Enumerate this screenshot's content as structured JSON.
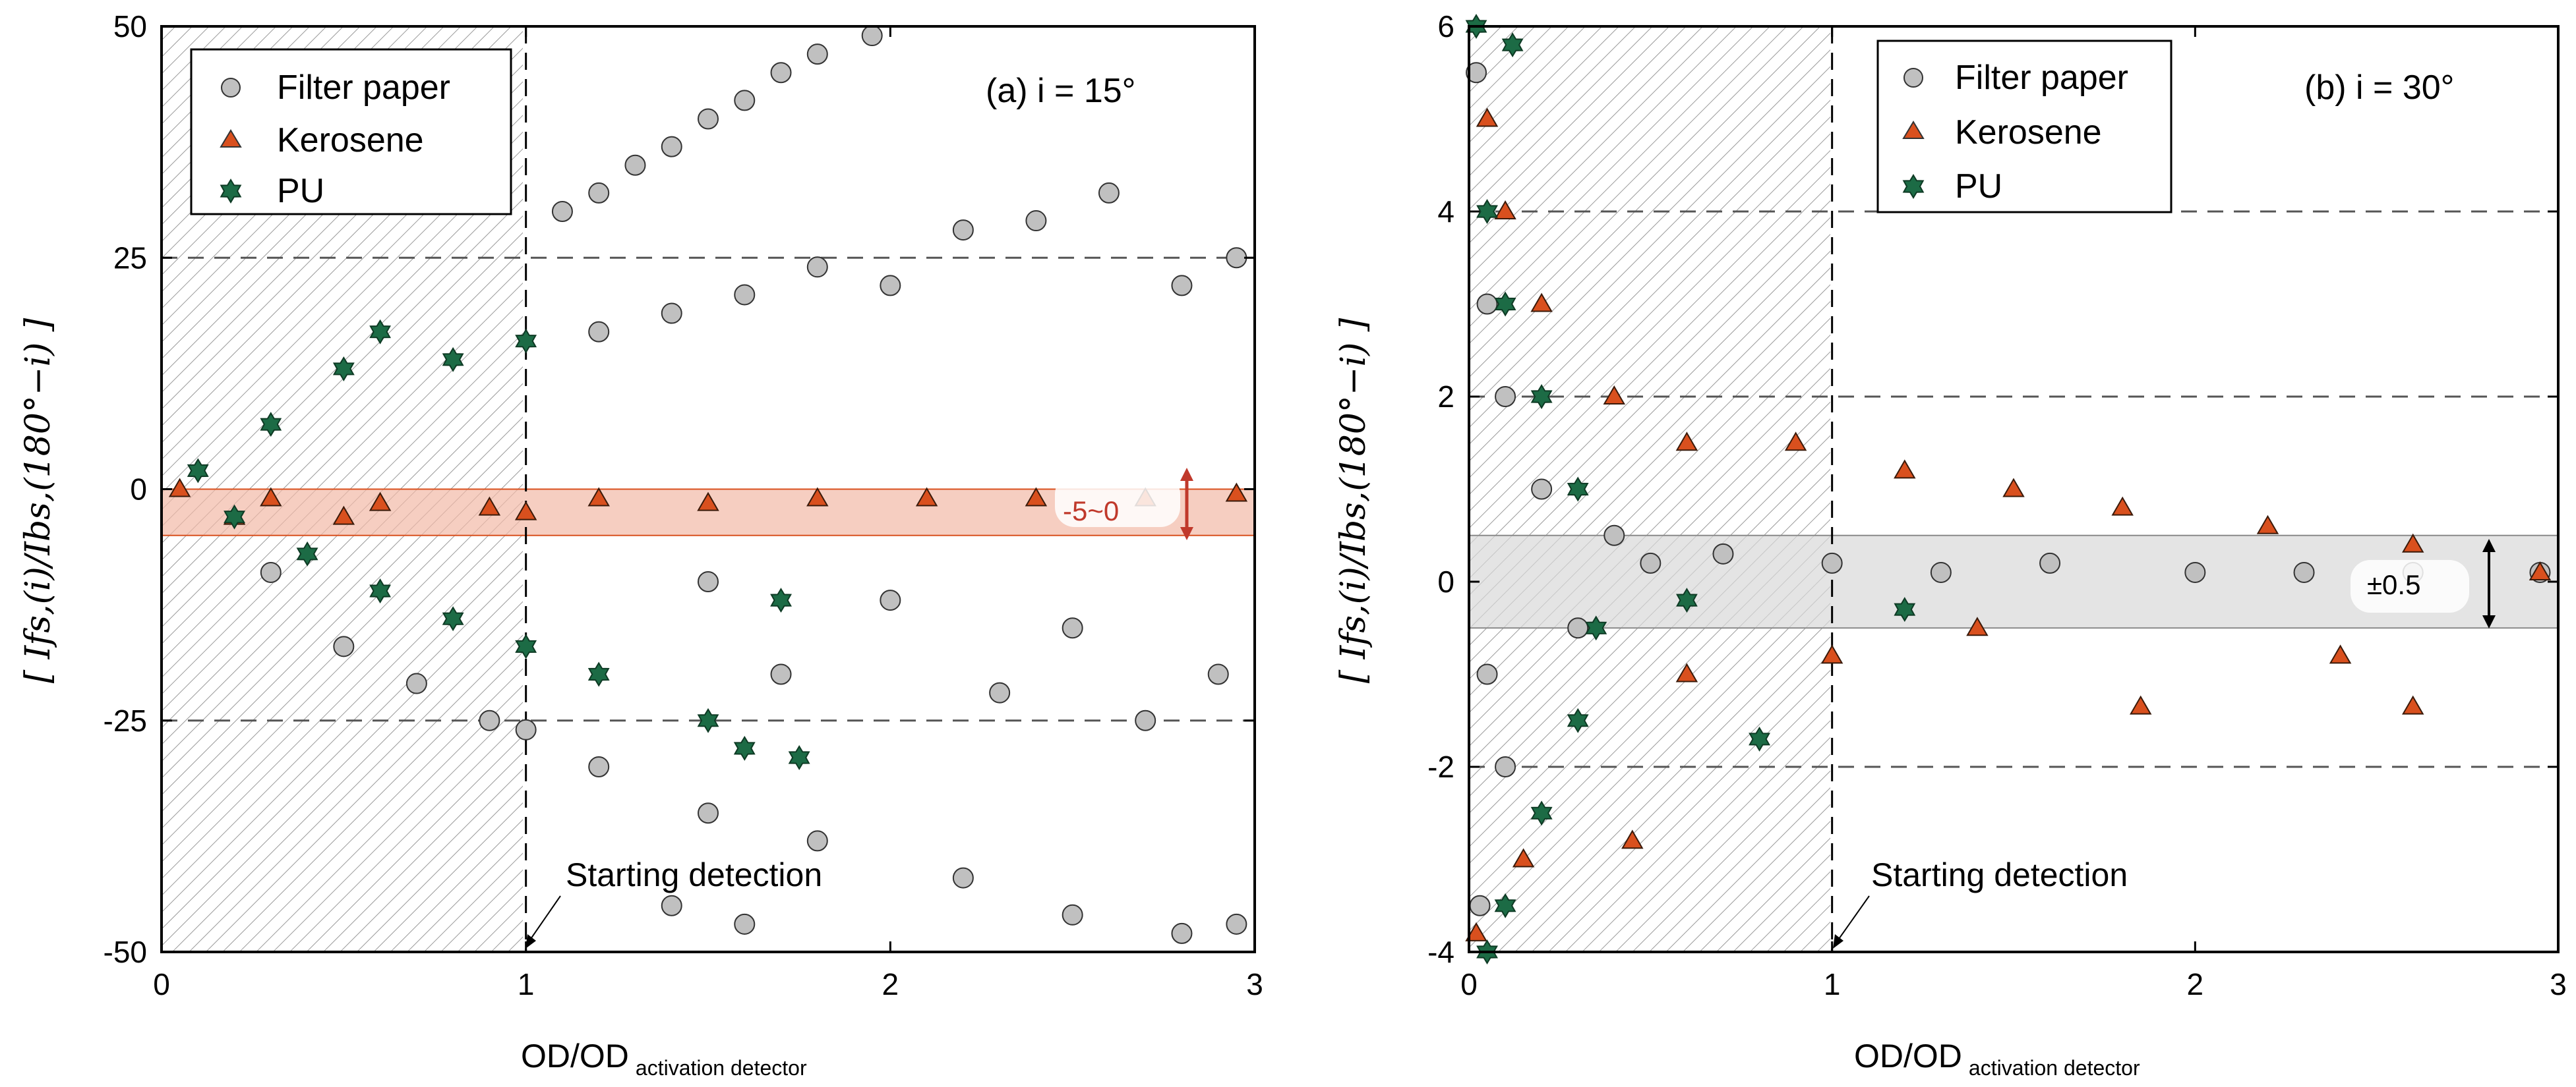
{
  "chart_data": [
    {
      "type": "scatter",
      "panel_label": "(a) i = 15°",
      "xlabel": "OD/OD",
      "xlabel_sub": "activation detector",
      "ylabel": "[ Ifs,(i)/Ibs,(180°−i) ]",
      "xlim": [
        0,
        3
      ],
      "ylim": [
        -50,
        50
      ],
      "xticks": [
        "0",
        "1",
        "2",
        "3"
      ],
      "yticks": [
        "50",
        "25",
        "0",
        "-25",
        "-50"
      ],
      "legend_position": "top-left",
      "guide_lines_y": [
        25,
        -25
      ],
      "detection_line_x": 1,
      "band": {
        "low": -5,
        "high": 0,
        "label": "-5~0"
      },
      "annotation": "Starting detection",
      "series": [
        {
          "name": "Filter paper",
          "marker": "circle",
          "color": "#c0c0c0",
          "points": [
            [
              1.1,
              30
            ],
            [
              1.2,
              32
            ],
            [
              1.3,
              35
            ],
            [
              1.4,
              37
            ],
            [
              1.5,
              40
            ],
            [
              1.6,
              42
            ],
            [
              1.7,
              45
            ],
            [
              1.8,
              47
            ],
            [
              1.95,
              49
            ],
            [
              1.2,
              17
            ],
            [
              1.4,
              19
            ],
            [
              1.6,
              21
            ],
            [
              1.8,
              24
            ],
            [
              2.0,
              22
            ],
            [
              2.2,
              28
            ],
            [
              2.4,
              29
            ],
            [
              2.6,
              32
            ],
            [
              2.8,
              22
            ],
            [
              2.95,
              25
            ],
            [
              1.0,
              -26
            ],
            [
              1.2,
              -30
            ],
            [
              1.5,
              -35
            ],
            [
              1.8,
              -38
            ],
            [
              2.2,
              -42
            ],
            [
              2.5,
              -46
            ],
            [
              2.8,
              -48
            ],
            [
              2.95,
              -47
            ],
            [
              1.5,
              -10
            ],
            [
              2.0,
              -12
            ],
            [
              2.5,
              -15
            ],
            [
              2.9,
              -20
            ],
            [
              1.7,
              -20
            ],
            [
              2.3,
              -22
            ],
            [
              2.7,
              -25
            ],
            [
              0.5,
              -17
            ],
            [
              0.7,
              -21
            ],
            [
              0.9,
              -25
            ],
            [
              0.3,
              -9
            ],
            [
              1.4,
              -45
            ],
            [
              1.6,
              -47
            ]
          ]
        },
        {
          "name": "Kerosene",
          "marker": "triangle",
          "color": "#d9501e",
          "points": [
            [
              0.05,
              0
            ],
            [
              0.3,
              -1
            ],
            [
              0.6,
              -1.5
            ],
            [
              0.9,
              -2
            ],
            [
              1.2,
              -1
            ],
            [
              1.5,
              -1.5
            ],
            [
              1.8,
              -1
            ],
            [
              2.1,
              -1
            ],
            [
              2.4,
              -1
            ],
            [
              2.7,
              -1
            ],
            [
              2.95,
              -0.5
            ],
            [
              0.2,
              -3
            ],
            [
              0.5,
              -3
            ],
            [
              1.0,
              -2.5
            ]
          ]
        },
        {
          "name": "PU",
          "marker": "star",
          "color": "#1c6b45",
          "points": [
            [
              0.1,
              2
            ],
            [
              0.3,
              7
            ],
            [
              0.5,
              13
            ],
            [
              0.6,
              17
            ],
            [
              0.8,
              14
            ],
            [
              1.0,
              16
            ],
            [
              0.2,
              -3
            ],
            [
              0.4,
              -7
            ],
            [
              0.6,
              -11
            ],
            [
              0.8,
              -14
            ],
            [
              1.0,
              -17
            ],
            [
              1.2,
              -20
            ],
            [
              1.5,
              -25
            ],
            [
              1.6,
              -28
            ],
            [
              1.75,
              -29
            ],
            [
              1.7,
              -12
            ]
          ]
        }
      ]
    },
    {
      "type": "scatter",
      "panel_label": "(b) i = 30°",
      "xlabel": "OD/OD",
      "xlabel_sub": "activation detector",
      "ylabel": "[ Ifs,(i)/Ibs,(180°−i) ]",
      "xlim": [
        0,
        3
      ],
      "ylim": [
        -4,
        6
      ],
      "xticks": [
        "0",
        "1",
        "2",
        "3"
      ],
      "yticks": [
        "6",
        "4",
        "2",
        "0",
        "-2",
        "-4"
      ],
      "legend_position": "top-center",
      "guide_lines_y": [
        4,
        2,
        -2
      ],
      "detection_line_x": 1,
      "band": {
        "low": -0.5,
        "high": 0.5,
        "label": "±0.5"
      },
      "annotation": "Starting detection",
      "series": [
        {
          "name": "Filter paper",
          "marker": "circle",
          "color": "#c0c0c0",
          "points": [
            [
              0.02,
              5.5
            ],
            [
              0.05,
              3
            ],
            [
              0.1,
              2
            ],
            [
              0.2,
              1
            ],
            [
              0.4,
              0.5
            ],
            [
              0.7,
              0.3
            ],
            [
              1.0,
              0.2
            ],
            [
              1.3,
              0.1
            ],
            [
              1.6,
              0.2
            ],
            [
              2.0,
              0.1
            ],
            [
              2.3,
              0.1
            ],
            [
              2.6,
              0.1
            ],
            [
              2.95,
              0.1
            ],
            [
              0.05,
              -1
            ],
            [
              0.1,
              -2
            ],
            [
              0.03,
              -3.5
            ],
            [
              0.3,
              -0.5
            ],
            [
              0.5,
              0.2
            ]
          ]
        },
        {
          "name": "Kerosene",
          "marker": "triangle",
          "color": "#d9501e",
          "points": [
            [
              0.05,
              5
            ],
            [
              0.1,
              4
            ],
            [
              0.2,
              3
            ],
            [
              0.4,
              2
            ],
            [
              0.6,
              1.5
            ],
            [
              0.9,
              1.5
            ],
            [
              1.2,
              1.2
            ],
            [
              1.5,
              1
            ],
            [
              1.8,
              0.8
            ],
            [
              2.2,
              0.6
            ],
            [
              2.6,
              0.4
            ],
            [
              2.95,
              0.1
            ],
            [
              0.6,
              -1
            ],
            [
              1.0,
              -0.8
            ],
            [
              1.4,
              -0.5
            ],
            [
              1.85,
              -1.35
            ],
            [
              2.6,
              -1.35
            ],
            [
              2.4,
              -0.8
            ],
            [
              0.45,
              -2.8
            ],
            [
              0.15,
              -3
            ],
            [
              0.02,
              -3.8
            ]
          ]
        },
        {
          "name": "PU",
          "marker": "star",
          "color": "#1c6b45",
          "points": [
            [
              0.02,
              6
            ],
            [
              0.05,
              4
            ],
            [
              0.1,
              3
            ],
            [
              0.2,
              2
            ],
            [
              0.3,
              1
            ],
            [
              0.35,
              -0.5
            ],
            [
              0.3,
              -1.5
            ],
            [
              0.2,
              -2.5
            ],
            [
              0.1,
              -3.5
            ],
            [
              0.05,
              -4
            ],
            [
              0.8,
              -1.7
            ],
            [
              1.2,
              -0.3
            ],
            [
              0.6,
              -0.2
            ],
            [
              0.12,
              5.8
            ]
          ]
        }
      ]
    }
  ]
}
